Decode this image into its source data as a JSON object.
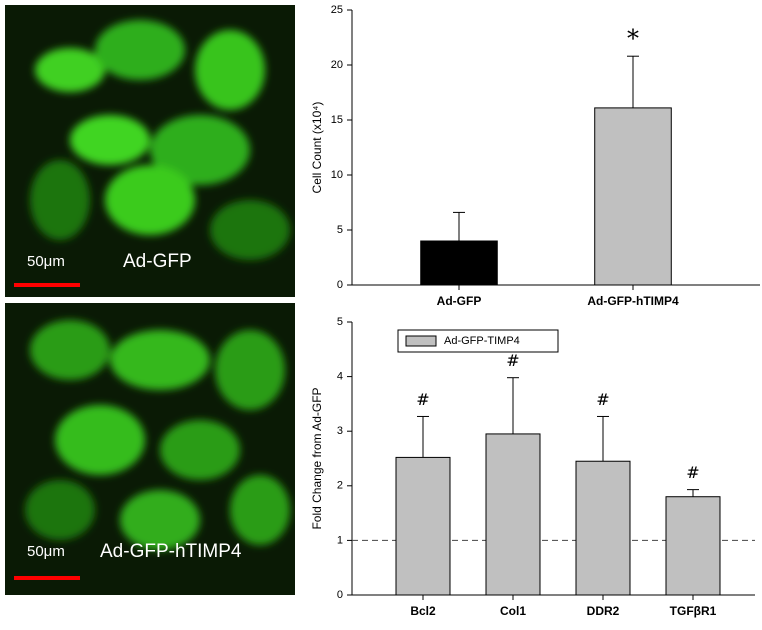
{
  "images": [
    {
      "label": "Ad-GFP",
      "scale_bar": "50μm"
    },
    {
      "label": "Ad-GFP-hTIMP4",
      "scale_bar": "50μm"
    }
  ],
  "chart_data": [
    {
      "type": "bar",
      "ylabel": "Cell Count  (x10⁴)",
      "categories": [
        "Ad-GFP",
        "Ad-GFP-hTIMP4"
      ],
      "values": [
        4,
        16.1
      ],
      "errors": [
        2.6,
        4.7
      ],
      "colors": [
        "#000000",
        "#c0c0c0"
      ],
      "markers": [
        null,
        "*"
      ],
      "ylim": [
        0,
        25
      ],
      "yticks": [
        0,
        5,
        10,
        15,
        20,
        25
      ]
    },
    {
      "type": "bar",
      "ylabel": "Fold Change from Ad-GFP",
      "categories": [
        "Bcl2",
        "Col1",
        "DDR2",
        "TGFβR1"
      ],
      "series": [
        {
          "name": "Ad-GFP-TIMP4",
          "color": "#c0c0c0",
          "values": [
            2.52,
            2.95,
            2.45,
            1.8
          ],
          "errors": [
            0.75,
            1.03,
            0.82,
            0.13
          ]
        }
      ],
      "markers": [
        "#",
        "#",
        "#",
        "#"
      ],
      "reference_line": 1,
      "legend": "upper left",
      "ylim": [
        0,
        5
      ],
      "yticks": [
        0,
        1,
        2,
        3,
        4,
        5
      ]
    }
  ]
}
